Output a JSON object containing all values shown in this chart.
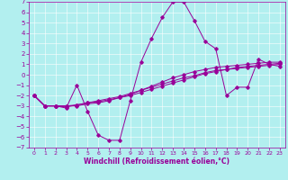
{
  "xlabel": "Windchill (Refroidissement éolien,°C)",
  "xlim": [
    -0.5,
    23.5
  ],
  "ylim": [
    -7,
    7
  ],
  "xticks": [
    0,
    1,
    2,
    3,
    4,
    5,
    6,
    7,
    8,
    9,
    10,
    11,
    12,
    13,
    14,
    15,
    16,
    17,
    18,
    19,
    20,
    21,
    22,
    23
  ],
  "yticks": [
    -7,
    -6,
    -5,
    -4,
    -3,
    -2,
    -1,
    0,
    1,
    2,
    3,
    4,
    5,
    6,
    7
  ],
  "bg_color": "#b2efef",
  "line_color": "#990099",
  "grid_color": "#ffffff",
  "line1_x": [
    0,
    1,
    2,
    3,
    4,
    5,
    6,
    7,
    8,
    9,
    10,
    11,
    12,
    13,
    14,
    15,
    16,
    17,
    18,
    19,
    20,
    21,
    22,
    23
  ],
  "line1_y": [
    -2.0,
    -3.0,
    -3.0,
    -3.2,
    -1.0,
    -3.5,
    -5.8,
    -6.3,
    -6.3,
    -2.5,
    1.2,
    3.5,
    5.5,
    7.0,
    7.0,
    5.2,
    3.2,
    2.5,
    -2.0,
    -1.2,
    -1.2,
    1.5,
    1.0,
    0.8
  ],
  "line2_x": [
    0,
    1,
    2,
    3,
    4,
    5,
    6,
    7,
    8,
    9,
    10,
    11,
    12,
    13,
    14,
    15,
    16,
    17,
    18,
    19,
    20,
    21,
    22,
    23
  ],
  "line2_y": [
    -2.0,
    -3.0,
    -3.0,
    -3.0,
    -3.0,
    -2.8,
    -2.7,
    -2.5,
    -2.2,
    -1.9,
    -1.5,
    -1.1,
    -0.7,
    -0.3,
    0.0,
    0.3,
    0.5,
    0.7,
    0.8,
    0.9,
    1.0,
    1.1,
    1.2,
    1.2
  ],
  "line3_x": [
    0,
    1,
    2,
    3,
    4,
    5,
    6,
    7,
    8,
    9,
    10,
    11,
    12,
    13,
    14,
    15,
    16,
    17,
    18,
    19,
    20,
    21,
    22,
    23
  ],
  "line3_y": [
    -2.0,
    -3.0,
    -3.0,
    -3.0,
    -2.9,
    -2.7,
    -2.5,
    -2.3,
    -2.1,
    -1.8,
    -1.5,
    -1.2,
    -0.9,
    -0.6,
    -0.3,
    -0.1,
    0.2,
    0.4,
    0.5,
    0.7,
    0.8,
    0.9,
    1.0,
    1.1
  ],
  "line4_x": [
    0,
    1,
    2,
    3,
    4,
    5,
    6,
    7,
    8,
    9,
    10,
    11,
    12,
    13,
    14,
    15,
    16,
    17,
    18,
    19,
    20,
    21,
    22,
    23
  ],
  "line4_y": [
    -2.0,
    -3.0,
    -3.0,
    -3.1,
    -2.9,
    -2.7,
    -2.6,
    -2.4,
    -2.2,
    -2.0,
    -1.7,
    -1.4,
    -1.1,
    -0.8,
    -0.5,
    -0.2,
    0.1,
    0.3,
    0.5,
    0.6,
    0.7,
    0.8,
    0.9,
    1.0
  ],
  "tick_fontsize_x": 4.5,
  "tick_fontsize_y": 5.0,
  "label_fontsize": 5.5,
  "marker": "D",
  "marker_size": 1.8,
  "linewidth": 0.7
}
